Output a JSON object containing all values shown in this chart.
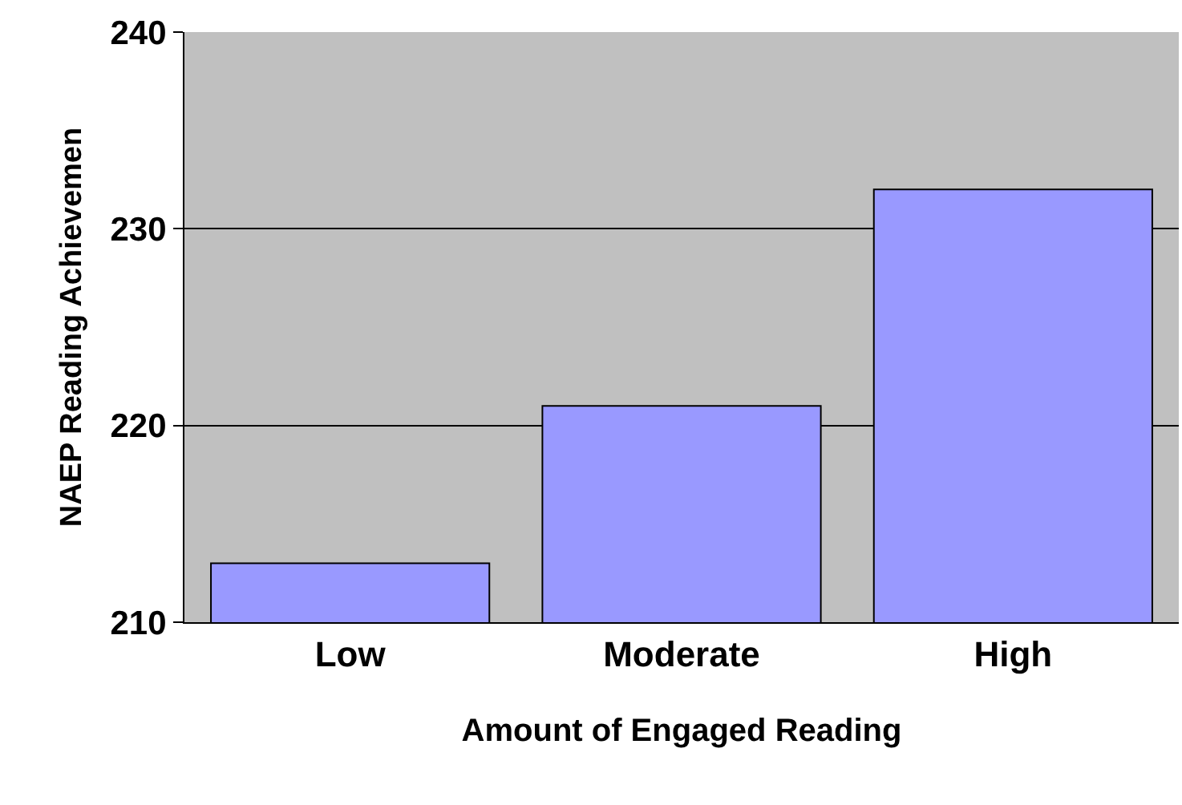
{
  "chart_data": {
    "type": "bar",
    "xlabel": "Amount of Engaged Reading",
    "ylabel": "NAEP Reading Achievemen",
    "categories": [
      "Low",
      "Moderate",
      "High"
    ],
    "values": [
      213,
      221,
      232
    ],
    "color": "#9999ff",
    "ylim": [
      210,
      240
    ],
    "yticks": [
      210,
      220,
      230,
      240
    ],
    "grid": "y",
    "legend": false
  }
}
